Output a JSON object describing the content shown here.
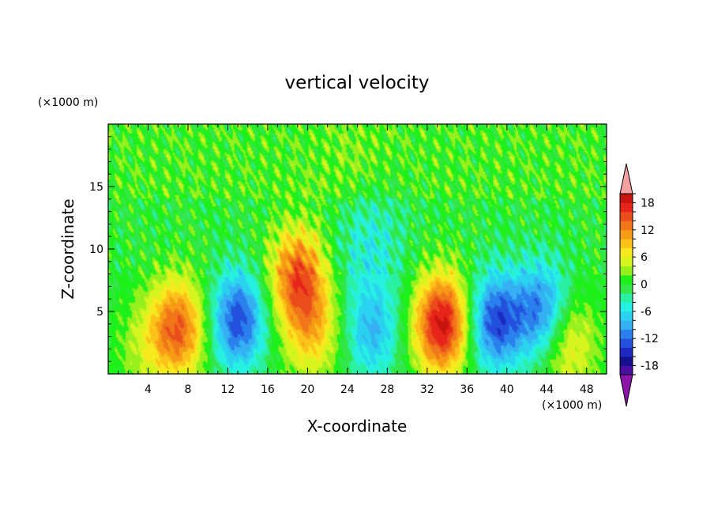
{
  "chart_data": {
    "type": "heatmap",
    "title": "vertical velocity",
    "xlabel": "X-coordinate",
    "ylabel": "Z-coordinate",
    "x_unit_label": "(×1000 m)",
    "y_unit_label": "(×1000 m)",
    "xlim": [
      0,
      50
    ],
    "ylim": [
      0,
      20
    ],
    "x_ticks": [
      "4",
      "8",
      "12",
      "16",
      "20",
      "24",
      "28",
      "32",
      "36",
      "40",
      "44",
      "48"
    ],
    "y_ticks": [
      "5",
      "10",
      "15"
    ],
    "colorbar": {
      "tick_labels": [
        "18",
        "12",
        "6",
        "0",
        "-6",
        "-12",
        "-18"
      ],
      "levels": [
        -20,
        -18,
        -16,
        -14,
        -12,
        -10,
        -8,
        -6,
        -4,
        -2,
        0,
        2,
        4,
        6,
        8,
        10,
        12,
        14,
        16,
        18,
        20
      ],
      "colors_low_to_high": [
        "#4a0ea0",
        "#16108c",
        "#1c28c0",
        "#2350dc",
        "#2a80ec",
        "#35b0f2",
        "#2ad2f0",
        "#26f0e2",
        "#2af0a4",
        "#33e64a",
        "#1ef01a",
        "#96f01e",
        "#d6f41e",
        "#f6ea1e",
        "#fcc21a",
        "#f79a16",
        "#f1761a",
        "#eb4c1c",
        "#e7241a",
        "#c6140e"
      ],
      "over_color": "#f4a0a0",
      "under_color": "#8c14a8",
      "extend": "both"
    },
    "features": [
      {
        "x": 3.5,
        "z": 2.2,
        "w": 3.0
      },
      {
        "x": 7.0,
        "z": 3.6,
        "w": 14.0
      },
      {
        "x": 13.0,
        "z": 4.3,
        "w": -13.5
      },
      {
        "x": 19.0,
        "z": 7.8,
        "w": 14.0
      },
      {
        "x": 20.5,
        "z": 3.5,
        "w": 8.0
      },
      {
        "x": 26.5,
        "z": 3.3,
        "w": -8.0
      },
      {
        "x": 26.0,
        "z": 11.3,
        "w": -6.0
      },
      {
        "x": 33.5,
        "z": 4.0,
        "w": 19.0
      },
      {
        "x": 38.8,
        "z": 4.2,
        "w": -13.5
      },
      {
        "x": 43.6,
        "z": 5.0,
        "w": -12.0
      },
      {
        "x": 46.0,
        "z": 2.6,
        "w": 8.0
      },
      {
        "x": 25.0,
        "z": 15.0,
        "w": 3.0
      }
    ]
  }
}
